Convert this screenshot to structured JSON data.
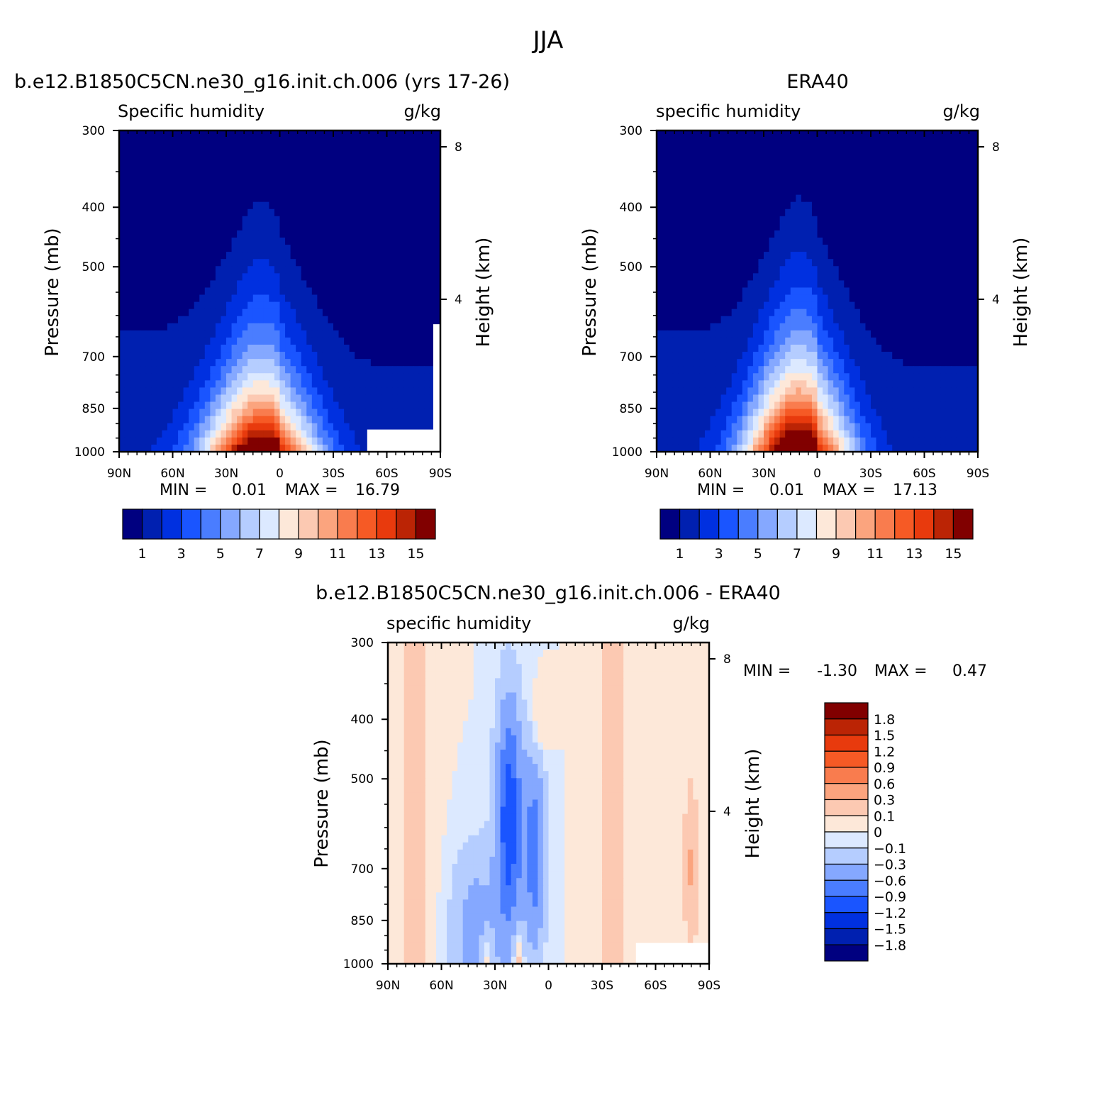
{
  "page_title": "JJA",
  "chart_data": [
    {
      "type": "heatmap",
      "title": "b.e12.B1850C5CN.ne30_g16.init.ch.006 (yrs 17-26)",
      "left_label": "Specific humidity",
      "right_label": "g/kg",
      "xlabel": "",
      "ylabel": "Pressure (mb)",
      "y2label": "Height (km)",
      "x_ticks": [
        "90N",
        "60N",
        "30N",
        "0",
        "30S",
        "60S",
        "90S"
      ],
      "y_ticks": [
        "300",
        "400",
        "500",
        "700",
        "850",
        "1000"
      ],
      "y2_ticks": [
        "8",
        "4"
      ],
      "xlim": [
        90,
        -90
      ],
      "ylim": [
        1000,
        300
      ],
      "min_label": "MIN =",
      "min_value": "0.01",
      "max_label": "MAX =",
      "max_value": "16.79",
      "peak_value": 16.79,
      "peak_lat": 10,
      "spread_surface": 32,
      "spread_top": 10,
      "depth_exponent": 1.0,
      "colorbar": {
        "orientation": "horizontal",
        "levels": [
          1,
          2,
          3,
          4,
          5,
          6,
          7,
          8,
          9,
          10,
          11,
          12,
          13,
          14,
          15
        ],
        "labels": [
          "1",
          "3",
          "5",
          "7",
          "9",
          "11",
          "13",
          "15"
        ],
        "colors": [
          "#000080",
          "#0020b0",
          "#0030e0",
          "#1a55ff",
          "#4a7dff",
          "#85a8ff",
          "#b5cdff",
          "#dce9ff",
          "#fde8d9",
          "#fcc9b2",
          "#fba47e",
          "#f97c4e",
          "#f65a25",
          "#e83a0d",
          "#bb2405",
          "#810000"
        ]
      }
    },
    {
      "type": "heatmap",
      "title": "ERA40",
      "left_label": "specific humidity",
      "right_label": "g/kg",
      "xlabel": "",
      "ylabel": "Pressure (mb)",
      "y2label": "Height (km)",
      "x_ticks": [
        "90N",
        "60N",
        "30N",
        "0",
        "30S",
        "60S",
        "90S"
      ],
      "y_ticks": [
        "300",
        "400",
        "500",
        "700",
        "850",
        "1000"
      ],
      "y2_ticks": [
        "8",
        "4"
      ],
      "xlim": [
        90,
        -90
      ],
      "ylim": [
        1000,
        300
      ],
      "min_label": "MIN =",
      "min_value": "0.01",
      "max_label": "MAX =",
      "max_value": "17.13",
      "peak_value": 17.13,
      "peak_lat": 10,
      "spread_surface": 30,
      "spread_top": 9,
      "depth_exponent": 1.1,
      "colorbar": {
        "orientation": "horizontal",
        "levels": [
          1,
          2,
          3,
          4,
          5,
          6,
          7,
          8,
          9,
          10,
          11,
          12,
          13,
          14,
          15
        ],
        "labels": [
          "1",
          "3",
          "5",
          "7",
          "9",
          "11",
          "13",
          "15"
        ],
        "colors": [
          "#000080",
          "#0020b0",
          "#0030e0",
          "#1a55ff",
          "#4a7dff",
          "#85a8ff",
          "#b5cdff",
          "#dce9ff",
          "#fde8d9",
          "#fcc9b2",
          "#fba47e",
          "#f97c4e",
          "#f65a25",
          "#e83a0d",
          "#bb2405",
          "#810000"
        ]
      }
    },
    {
      "type": "heatmap",
      "title": "b.e12.B1850C5CN.ne30_g16.init.ch.006 - ERA40",
      "left_label": "specific humidity",
      "right_label": "g/kg",
      "xlabel": "",
      "ylabel": "Pressure (mb)",
      "y2label": "Height (km)",
      "x_ticks": [
        "90N",
        "60N",
        "30N",
        "0",
        "30S",
        "60S",
        "90S"
      ],
      "y_ticks": [
        "300",
        "400",
        "500",
        "700",
        "850",
        "1000"
      ],
      "y2_ticks": [
        "8",
        "4"
      ],
      "xlim": [
        90,
        -90
      ],
      "ylim": [
        1000,
        300
      ],
      "min_label": "MIN =",
      "min_value": "-1.30",
      "max_label": "MAX =",
      "max_value": "0.47",
      "colorbar": {
        "orientation": "vertical",
        "levels": [
          -1.8,
          -1.5,
          -1.2,
          -0.9,
          -0.6,
          -0.3,
          -0.1,
          0,
          0.1,
          0.3,
          0.6,
          0.9,
          1.2,
          1.5,
          1.8
        ],
        "labels": [
          "1.8",
          "1.5",
          "1.2",
          "0.9",
          "0.6",
          "0.3",
          "0.1",
          "0",
          "-0.1",
          "-0.3",
          "-0.6",
          "-0.9",
          "-1.2",
          "-1.5",
          "-1.8"
        ],
        "colors": [
          "#000080",
          "#0020b0",
          "#0030e0",
          "#1a55ff",
          "#4a7dff",
          "#85a8ff",
          "#b5cdff",
          "#dce9ff",
          "#fde8d9",
          "#fcc9b2",
          "#fba47e",
          "#f97c4e",
          "#f65a25",
          "#e83a0d",
          "#bb2405",
          "#810000"
        ]
      }
    }
  ]
}
